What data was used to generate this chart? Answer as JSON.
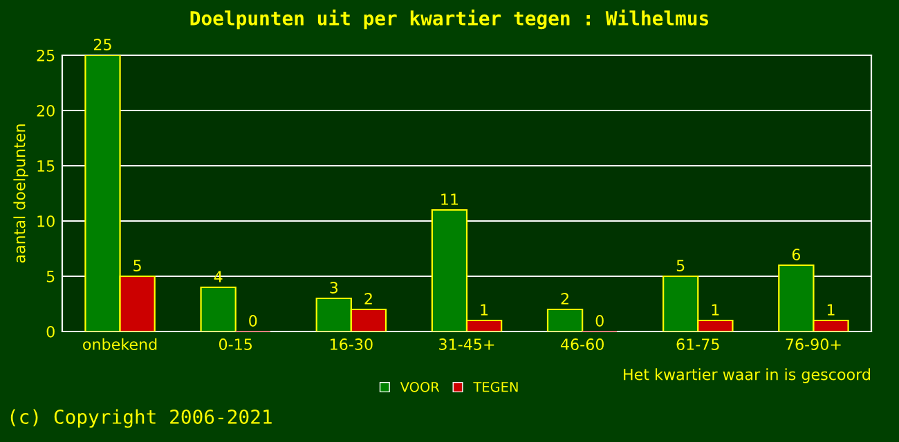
{
  "chart_data": {
    "type": "bar",
    "title": "Doelpunten uit per kwartier tegen : Wilhelmus",
    "ylabel": "aantal doelpunten",
    "xlabel": "Het kwartier waar in is gescoord",
    "categories": [
      "onbekend",
      "0-15",
      "16-30",
      "31-45+",
      "46-60",
      "61-75",
      "76-90+"
    ],
    "series": [
      {
        "name": "VOOR",
        "color": "#008000",
        "values": [
          25,
          4,
          3,
          11,
          2,
          5,
          6
        ]
      },
      {
        "name": "TEGEN",
        "color": "#cc0000",
        "values": [
          5,
          0,
          2,
          1,
          0,
          1,
          1
        ]
      }
    ],
    "ylim": [
      0,
      25
    ],
    "yticks": [
      0,
      5,
      10,
      15,
      20,
      25
    ],
    "grid": "y",
    "legend": "bottom",
    "data_labels": true,
    "annotations": [
      "(c) Copyright 2006-2021"
    ]
  }
}
